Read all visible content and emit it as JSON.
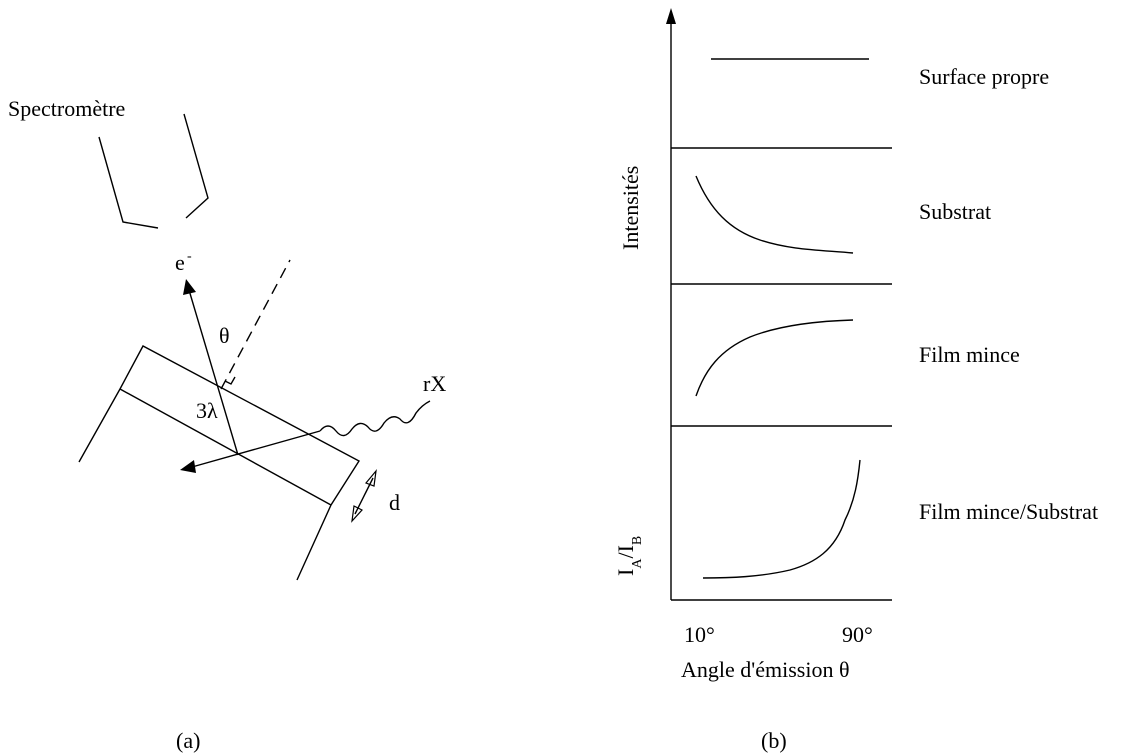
{
  "panel_a": {
    "label": "(a)",
    "spectrometer_label": "Spectromètre",
    "electron_label": "e",
    "electron_superscript": "-",
    "angle_label": "θ",
    "depth_label": "3λ",
    "xray_label": "rX",
    "thickness_label": "d"
  },
  "panel_b": {
    "label": "(b)",
    "ylabel_top": "Intensités",
    "ylabel_bottom": {
      "main": "I",
      "sub_a": "A",
      "sep": "/I",
      "sub_b": "B"
    },
    "xlabel": "Angle d'émission θ",
    "x_ticks": [
      "10°",
      "90°"
    ],
    "rows": [
      {
        "name": "Surface propre",
        "shape": "flat"
      },
      {
        "name": "Substrat",
        "shape": "decreasing"
      },
      {
        "name": "Film mince",
        "shape": "increasing"
      },
      {
        "name": "Film mince/Substrat",
        "shape": "sharp-rise-near-90"
      }
    ]
  }
}
